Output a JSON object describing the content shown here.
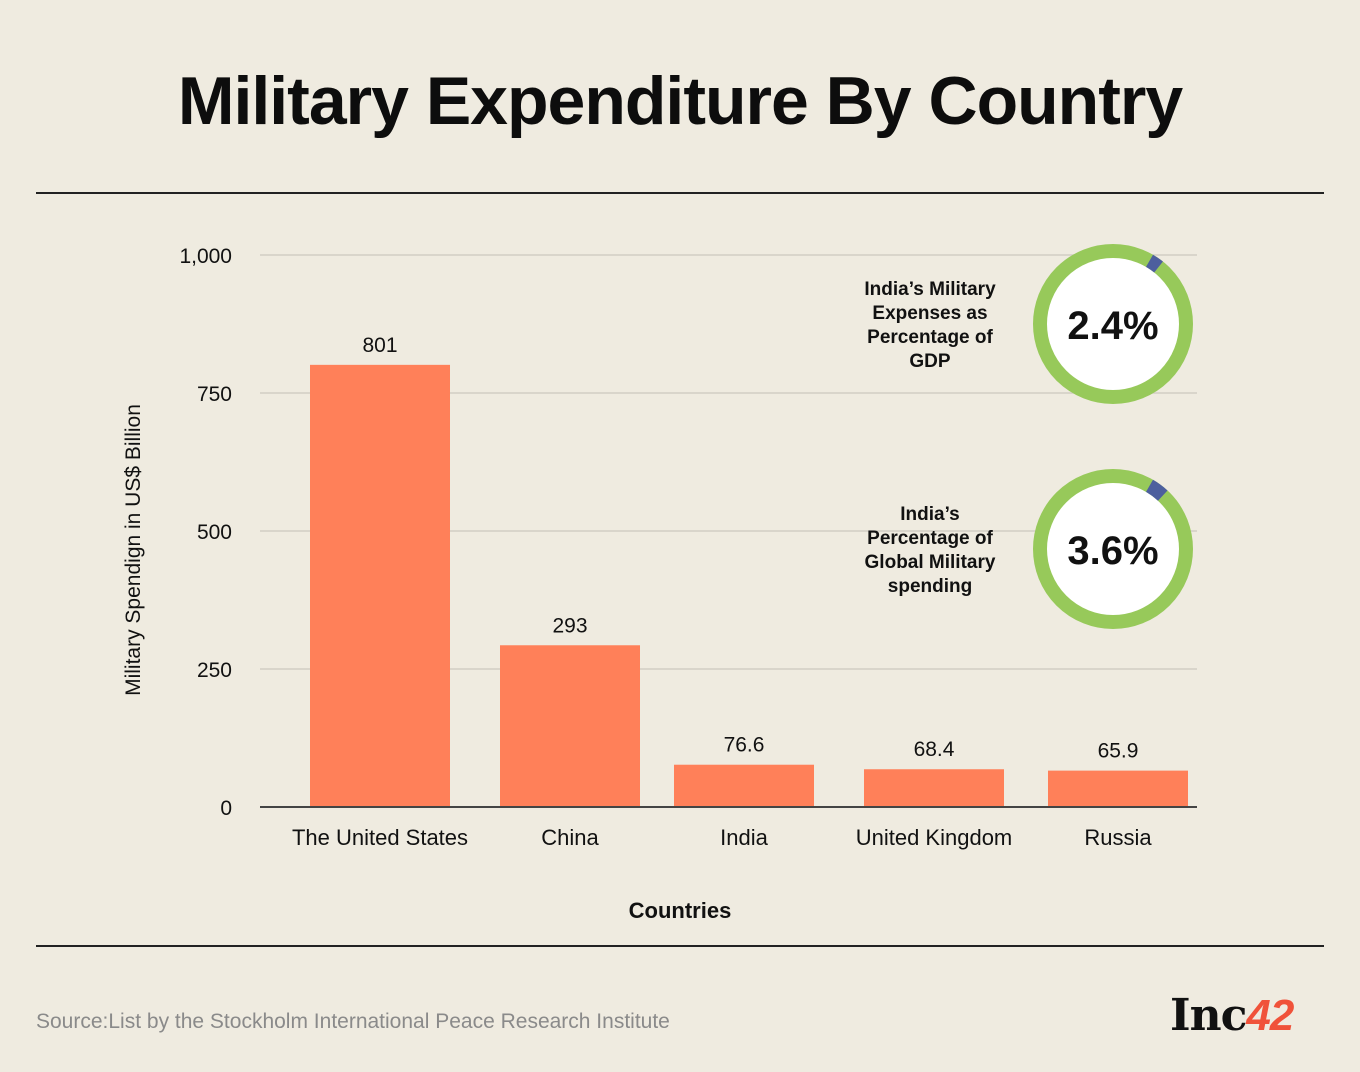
{
  "header": {
    "title": "Military Expenditure By Country"
  },
  "chart_data": {
    "type": "bar",
    "title": "Military Expenditure By Country",
    "xlabel": "Countries",
    "ylabel": "Military Spendign in US$ Billion",
    "categories": [
      "The United States",
      "China",
      "India",
      "United Kingdom",
      "Russia"
    ],
    "values": [
      801,
      293,
      76.6,
      68.4,
      65.9
    ],
    "value_labels": [
      "801",
      "293",
      "76.6",
      "68.4",
      "65.9"
    ],
    "ylim": [
      0,
      1000
    ],
    "yticks": [
      0,
      250,
      500,
      750,
      1000
    ],
    "ytick_labels": [
      "0",
      "250",
      "500",
      "750",
      "1,000"
    ],
    "grid": true,
    "bar_color": "#ff8059"
  },
  "callouts": [
    {
      "label_lines": [
        "India’s Military",
        "Expenses as",
        "Percentage of",
        "GDP"
      ],
      "value": "2.4%",
      "fraction": 0.024
    },
    {
      "label_lines": [
        "India’s",
        "Percentage of",
        "Global Military",
        "spending"
      ],
      "value": "3.6%",
      "fraction": 0.036
    }
  ],
  "colors": {
    "ring": "#97c95a",
    "ring_highlight": "#4d5f9e",
    "bar": "#ff8059",
    "background": "#efebe0"
  },
  "footer": {
    "source": "Source:List by the Stockholm International Peace Research Institute",
    "logo_text": "Inc",
    "logo_num": "42"
  }
}
